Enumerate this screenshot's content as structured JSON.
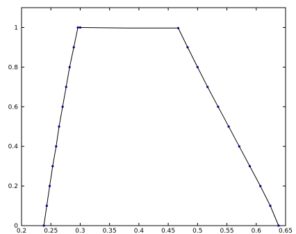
{
  "chart_data": {
    "type": "line",
    "title": "",
    "xlabel": "",
    "ylabel": "",
    "xlim": [
      0.2,
      0.65
    ],
    "ylim": [
      0,
      1.1
    ],
    "grid": false,
    "x_ticks": [
      0.2,
      0.25,
      0.3,
      0.35,
      0.4,
      0.45,
      0.5,
      0.55,
      0.6,
      0.65
    ],
    "x_tick_labels": [
      "0.2",
      "0.25",
      "0.3",
      "0.35",
      "0.4",
      "0.45",
      "0.5",
      "0.55",
      "0.6",
      "0.65"
    ],
    "y_ticks": [
      0,
      0.2,
      0.4,
      0.6,
      0.8,
      1
    ],
    "y_tick_labels": [
      "0",
      "0.2",
      "0.4",
      "0.6",
      "0.8",
      "1"
    ],
    "line_color": "#000000",
    "marker_color": "#00008b",
    "series": [
      {
        "x": [
          0.238,
          0.243,
          0.248,
          0.253,
          0.259,
          0.264,
          0.27,
          0.276,
          0.282,
          0.289,
          0.296,
          0.3,
          0.38,
          0.467,
          0.483,
          0.5,
          0.517,
          0.535,
          0.553,
          0.571,
          0.589,
          0.607,
          0.624,
          0.638
        ],
        "y": [
          0,
          0.1,
          0.2,
          0.3,
          0.4,
          0.5,
          0.6,
          0.7,
          0.8,
          0.9,
          1.0,
          1.0,
          0.997,
          0.997,
          0.9,
          0.8,
          0.7,
          0.6,
          0.5,
          0.4,
          0.3,
          0.2,
          0.1,
          0.0
        ],
        "markers": [
          true,
          true,
          true,
          true,
          true,
          true,
          true,
          true,
          true,
          true,
          true,
          true,
          false,
          true,
          true,
          true,
          true,
          true,
          true,
          true,
          true,
          true,
          true,
          true
        ]
      }
    ]
  }
}
